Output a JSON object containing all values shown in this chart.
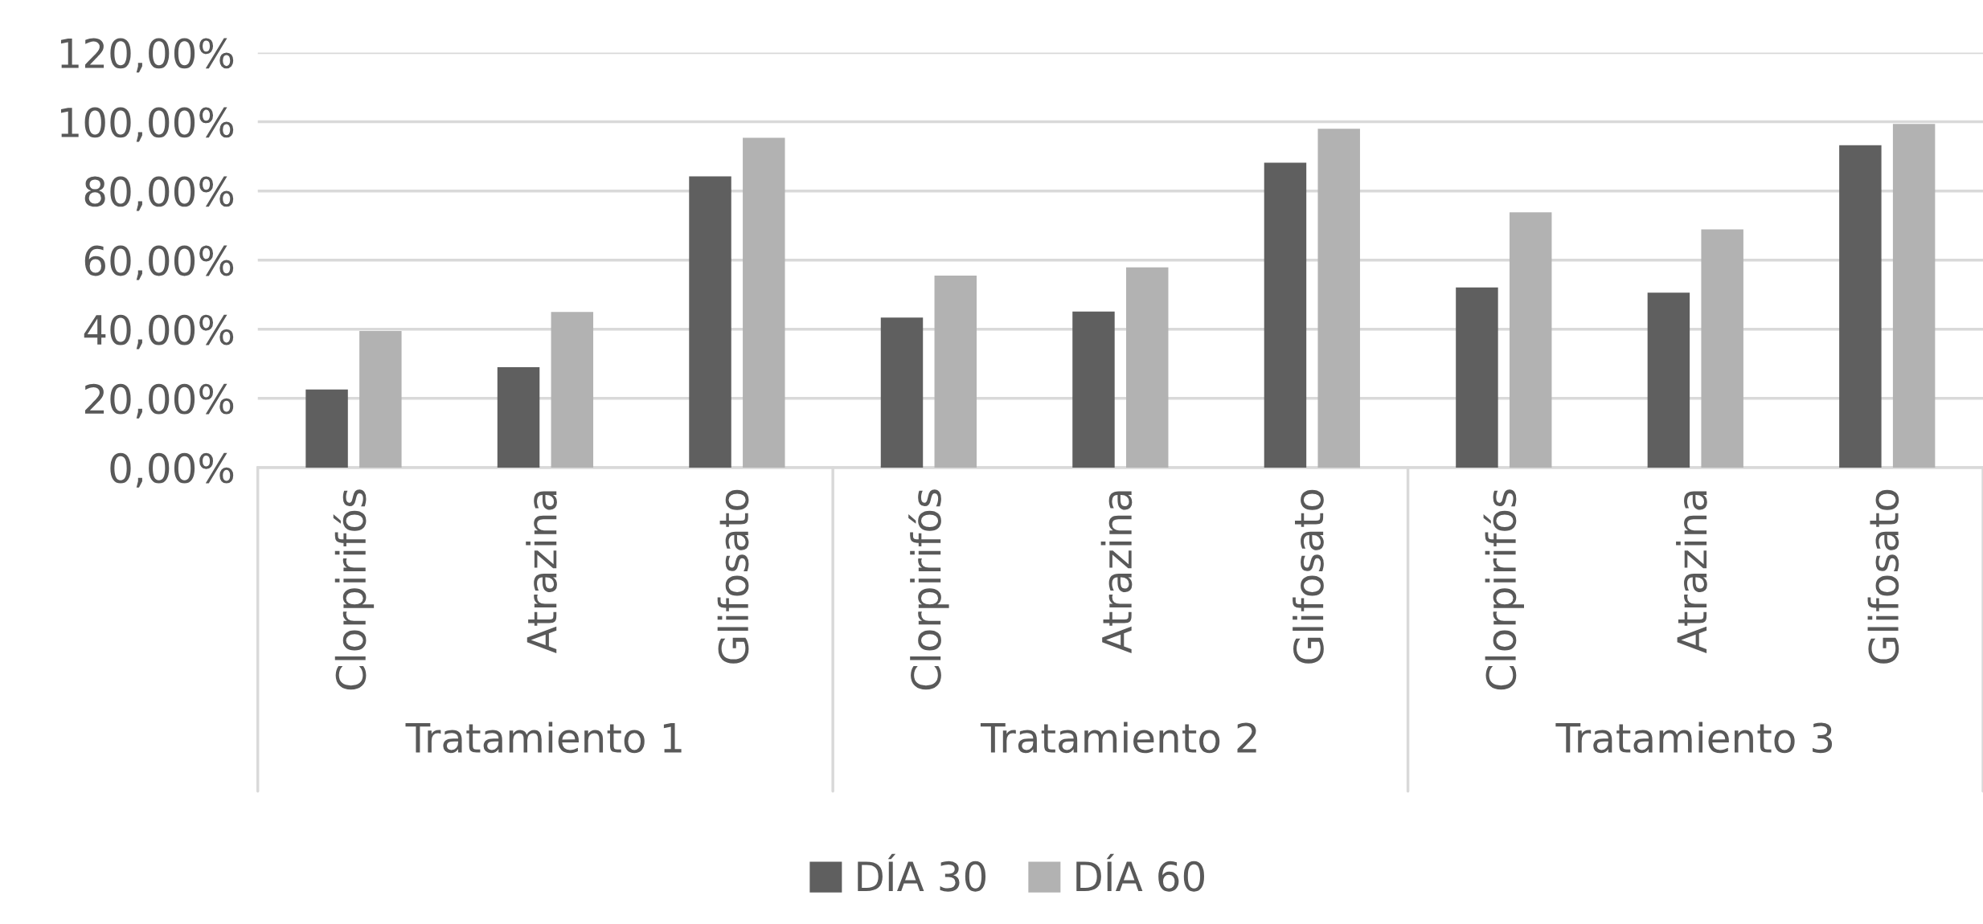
{
  "chart_data": {
    "type": "bar",
    "categories": [
      "Clorpirifós",
      "Atrazina",
      "Glifosato",
      "Clorpirifós",
      "Atrazina",
      "Glifosato",
      "Clorpirifós",
      "Atrazina",
      "Glifosato"
    ],
    "series": [
      {
        "name": "DÍA 30",
        "color": "#5f5f5f",
        "values": [
          22.6,
          29.0,
          84.2,
          43.4,
          45.1,
          88.2,
          52.1,
          50.6,
          93.2
        ]
      },
      {
        "name": "DÍA 60",
        "color": "#b2b2b2",
        "values": [
          39.5,
          45.0,
          95.4,
          55.5,
          57.9,
          98.0,
          73.8,
          68.9,
          99.4
        ]
      }
    ],
    "annotations": [
      "Tratamiento 1",
      "Tratamiento 2",
      "Tratamiento 3"
    ],
    "ylim": [
      0,
      120
    ],
    "yticks": [
      {
        "value": 0,
        "label": "0,00%"
      },
      {
        "value": 20,
        "label": "20,00%"
      },
      {
        "value": 40,
        "label": "40,00%"
      },
      {
        "value": 60,
        "label": "60,00%"
      },
      {
        "value": 80,
        "label": "80,00%"
      },
      {
        "value": 100,
        "label": "100,00%"
      },
      {
        "value": 120,
        "label": "120,00%"
      }
    ],
    "grid": "y",
    "legend": "bottom"
  }
}
